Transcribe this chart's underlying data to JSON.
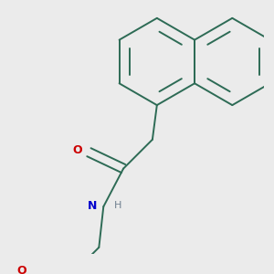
{
  "background_color": "#ebebeb",
  "bond_color": "#2d6b55",
  "line_width": 1.4,
  "atom_colors": {
    "O": "#cc0000",
    "N": "#0000cc",
    "H": "#708090",
    "C": "#2d6b55"
  },
  "font_size_atom": 9,
  "font_size_h": 8,
  "figsize": [
    3.0,
    3.0
  ],
  "dpi": 100
}
